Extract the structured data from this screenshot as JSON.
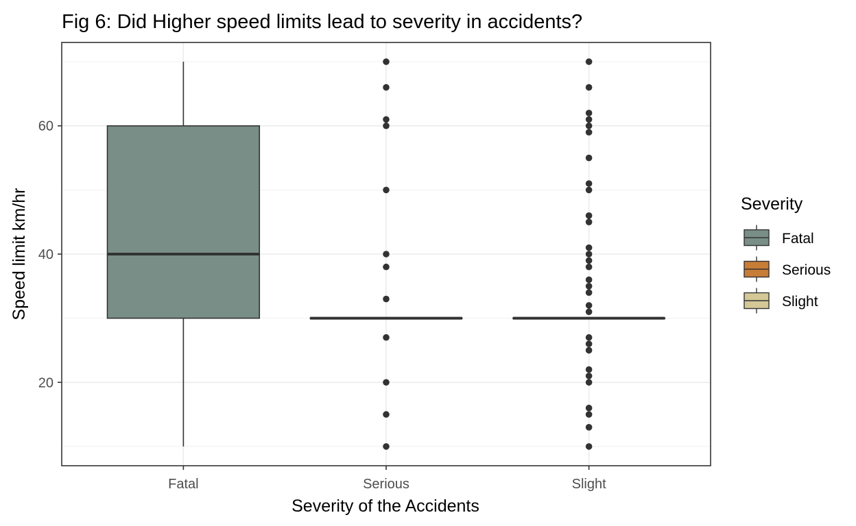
{
  "chart_data": {
    "type": "boxplot",
    "title": "Fig 6: Did Higher speed limits lead to severity in accidents?",
    "xlabel": "Severity of the Accidents",
    "ylabel": "Speed limit km/hr",
    "ylim": [
      7,
      73
    ],
    "y_ticks": [
      20,
      40,
      60
    ],
    "grid": true,
    "legend_position": "right",
    "categories": [
      "Fatal",
      "Serious",
      "Slight"
    ],
    "series": [
      {
        "name": "Fatal",
        "color": "#798e86",
        "whisker_low": 10,
        "q1": 30,
        "median": 40,
        "q3": 60,
        "whisker_high": 70,
        "outliers": []
      },
      {
        "name": "Serious",
        "color": "#c77c37",
        "whisker_low": 30,
        "q1": 30,
        "median": 30,
        "q3": 30,
        "whisker_high": 30,
        "outliers": [
          10,
          15,
          20,
          27,
          33,
          38,
          40,
          50,
          60,
          61,
          66,
          70
        ]
      },
      {
        "name": "Slight",
        "color": "#d3c896",
        "whisker_low": 30,
        "q1": 30,
        "median": 30,
        "q3": 30,
        "whisker_high": 30,
        "outliers": [
          10,
          13,
          15,
          16,
          20,
          21,
          22,
          25,
          26,
          27,
          31,
          32,
          34,
          35,
          36,
          38,
          39,
          40,
          41,
          45,
          46,
          50,
          51,
          55,
          59,
          60,
          61,
          62,
          66,
          70
        ]
      }
    ],
    "legend": {
      "title": "Severity",
      "entries": [
        "Fatal",
        "Serious",
        "Slight"
      ]
    }
  }
}
